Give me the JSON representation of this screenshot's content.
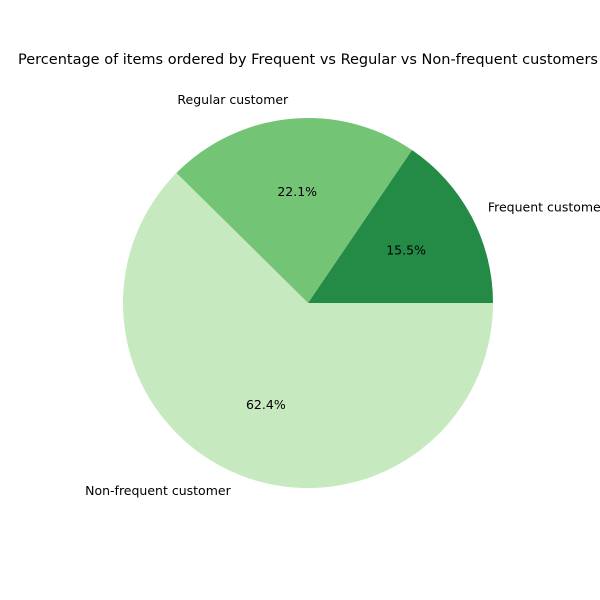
{
  "chart_data": {
    "type": "pie",
    "title": "Percentage of items ordered by Frequent vs Regular vs Non-frequent customers",
    "categories": [
      "Frequent customer",
      "Regular customer",
      "Non-frequent customer"
    ],
    "values": [
      15.5,
      22.1,
      62.4
    ],
    "value_labels": [
      "15.5%",
      "22.1%",
      "62.4%"
    ],
    "colors": [
      "#238b45",
      "#74c476",
      "#c7e9c0"
    ],
    "start_angle_deg": 0,
    "direction": "counterclockwise",
    "legend": "none"
  }
}
